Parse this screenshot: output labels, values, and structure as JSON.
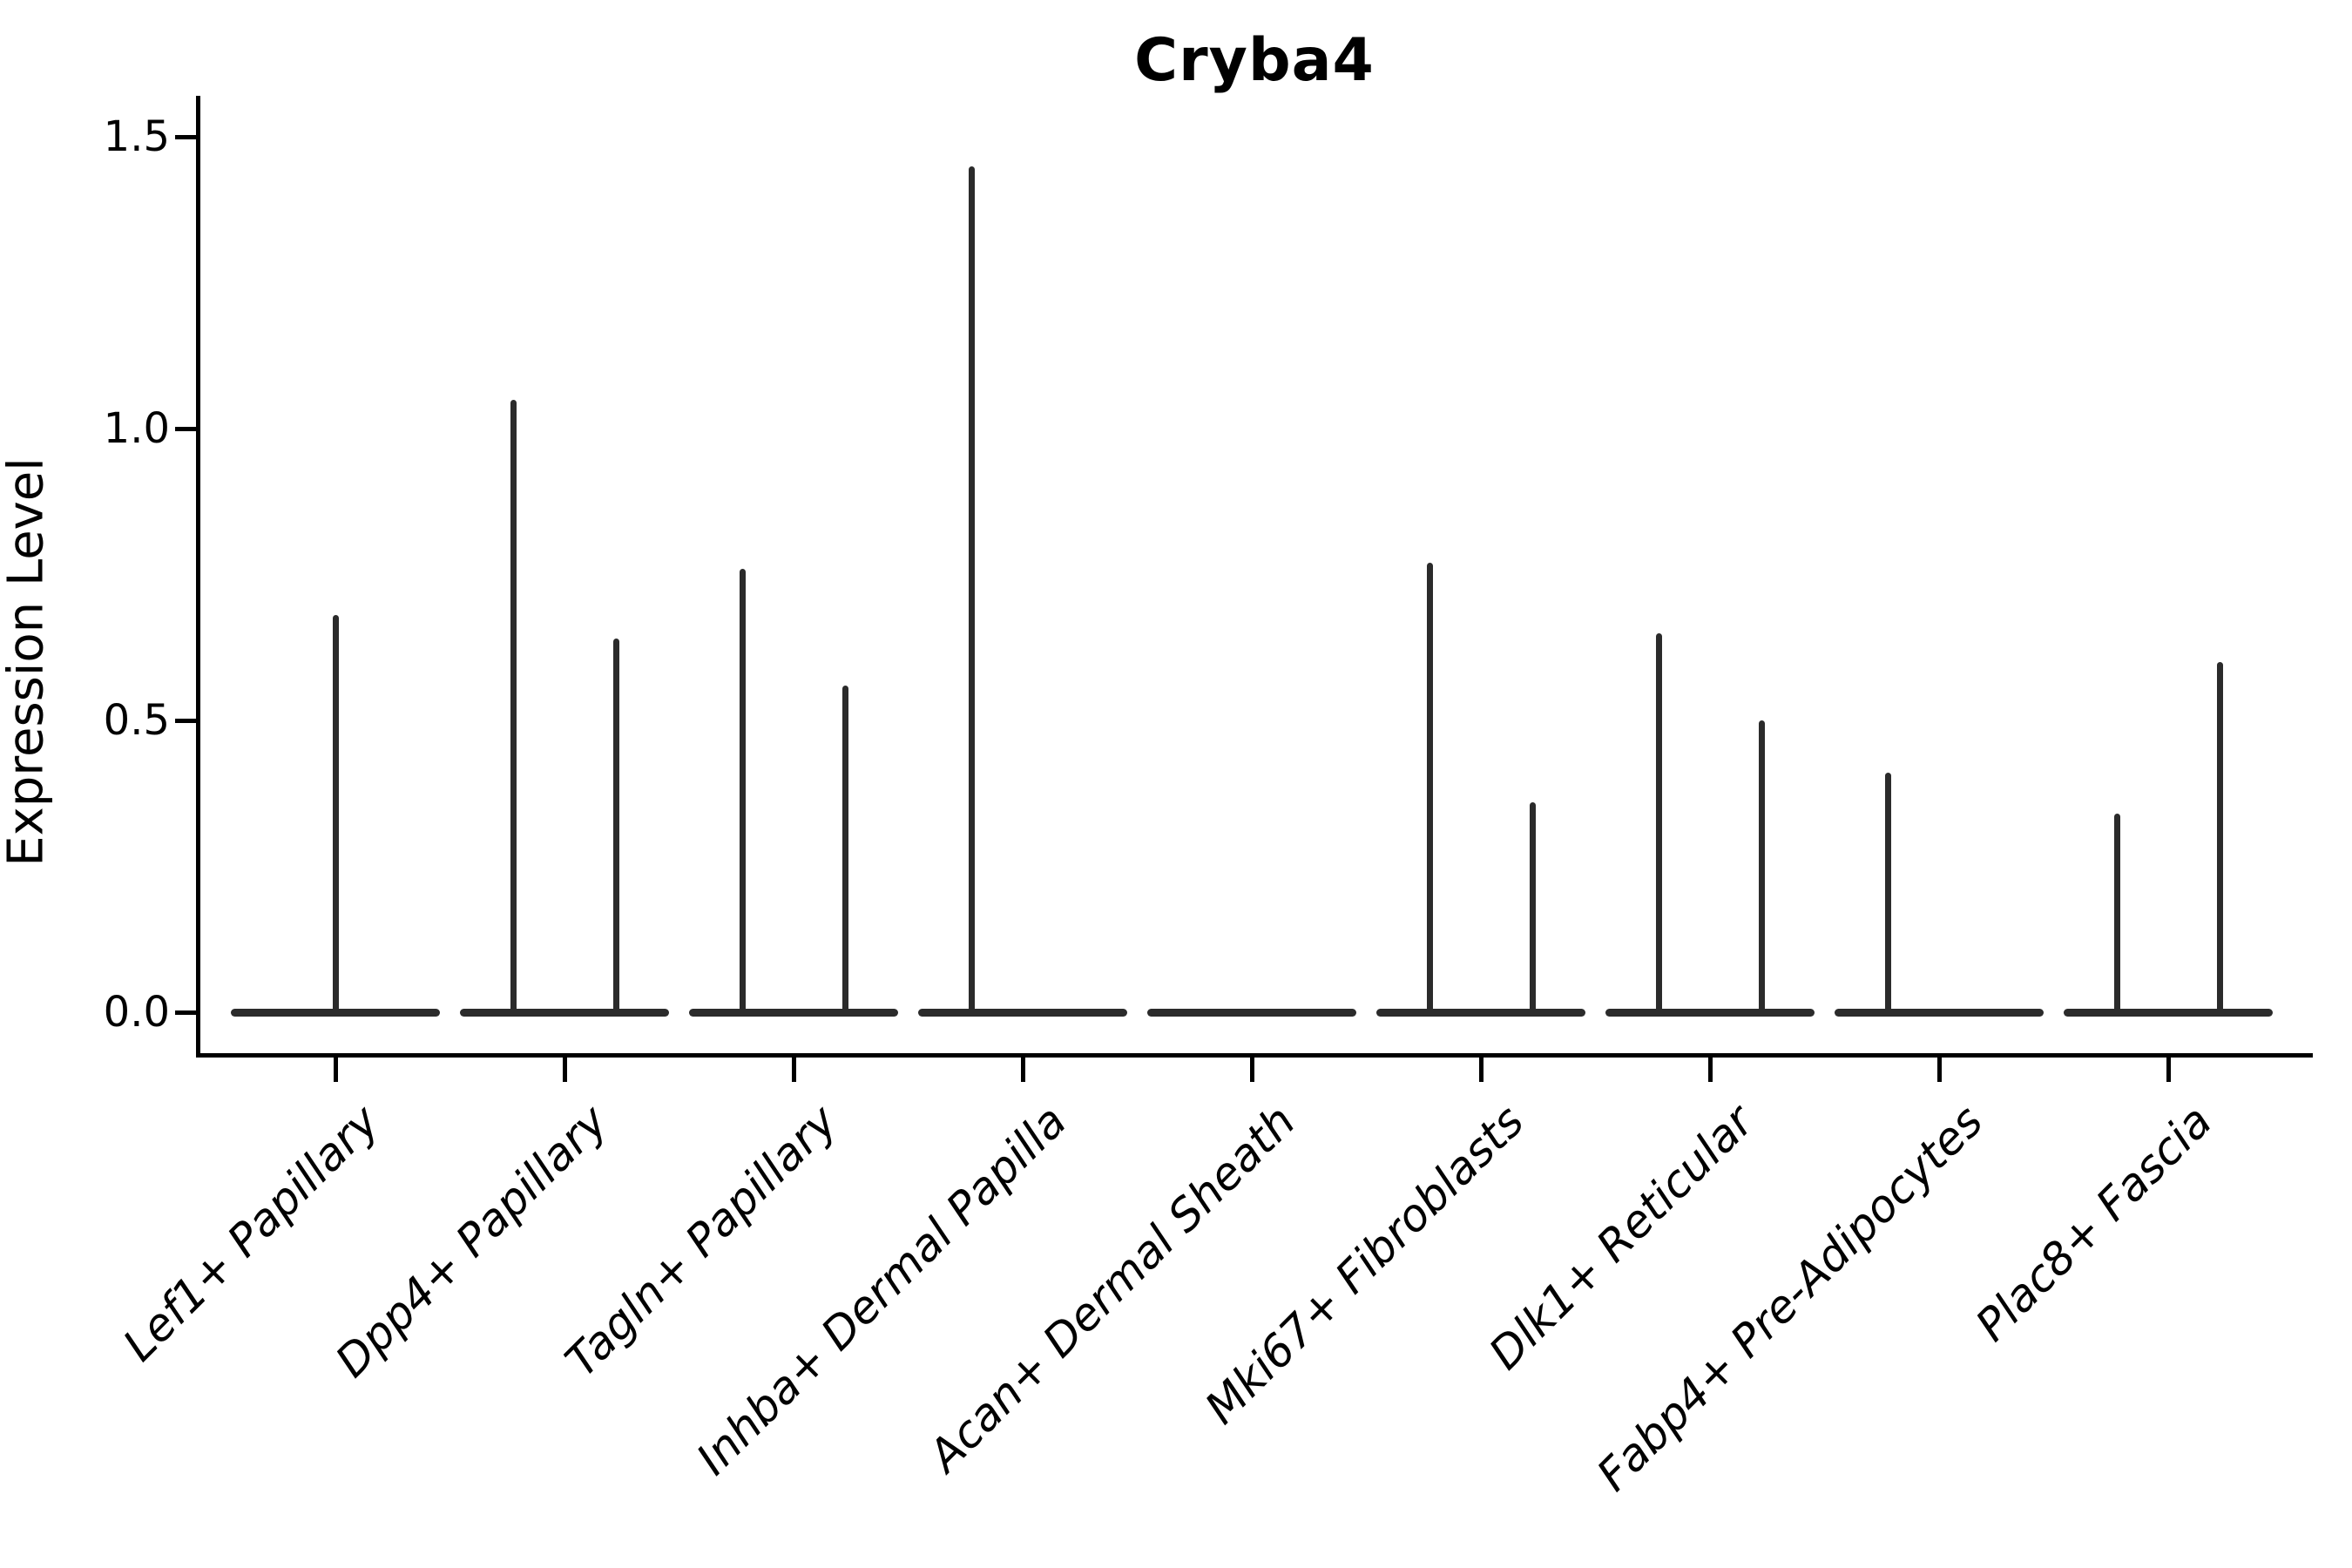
{
  "title": "Cryba4",
  "ylabel": "Expression Level",
  "chart_data": {
    "type": "violin",
    "title": "Cryba4",
    "xlabel": "",
    "ylabel": "Expression Level",
    "ylim": [
      -0.07,
      1.57
    ],
    "yticks": [
      0.0,
      0.5,
      1.0,
      1.5
    ],
    "ytick_labels": [
      "0.0",
      "0.5",
      "1.0",
      "1.5"
    ],
    "grid": false,
    "legend": "none",
    "violin_color": "#2b2b2b",
    "categories": [
      "Lef1+ Papillary",
      "Dpp4+ Papillary",
      "Tagln+ Papillary",
      "Inhba+ Dermal Papilla",
      "Acan+ Dermal Sheath",
      "Mki67+ Fibroblasts",
      "Dlk1+ Reticular",
      "Fabp4+ Pre-Adipocytes",
      "Plac8+ Fascia"
    ],
    "series": [
      {
        "category": "Lef1+ Papillary",
        "baseline_value": 0.0,
        "spikes": [
          {
            "pos": "center",
            "max": 0.68
          }
        ]
      },
      {
        "category": "Dpp4+ Papillary",
        "baseline_value": 0.0,
        "spikes": [
          {
            "pos": "left",
            "max": 1.05
          },
          {
            "pos": "right",
            "max": 0.64
          }
        ]
      },
      {
        "category": "Tagln+ Papillary",
        "baseline_value": 0.0,
        "spikes": [
          {
            "pos": "left",
            "max": 0.76
          },
          {
            "pos": "right",
            "max": 0.56
          }
        ]
      },
      {
        "category": "Inhba+ Dermal Papilla",
        "baseline_value": 0.0,
        "spikes": [
          {
            "pos": "left",
            "max": 1.45
          }
        ]
      },
      {
        "category": "Acan+ Dermal Sheath",
        "baseline_value": 0.0,
        "spikes": []
      },
      {
        "category": "Mki67+ Fibroblasts",
        "baseline_value": 0.0,
        "spikes": [
          {
            "pos": "left",
            "max": 0.77
          },
          {
            "pos": "right",
            "max": 0.36
          }
        ]
      },
      {
        "category": "Dlk1+ Reticular",
        "baseline_value": 0.0,
        "spikes": [
          {
            "pos": "left",
            "max": 0.65
          },
          {
            "pos": "right",
            "max": 0.5
          }
        ]
      },
      {
        "category": "Fabp4+ Pre-Adipocytes",
        "baseline_value": 0.0,
        "spikes": [
          {
            "pos": "left",
            "max": 0.41
          }
        ]
      },
      {
        "category": "Plac8+ Fascia",
        "baseline_value": 0.0,
        "spikes": [
          {
            "pos": "left",
            "max": 0.34
          },
          {
            "pos": "right",
            "max": 0.6
          }
        ]
      }
    ]
  }
}
